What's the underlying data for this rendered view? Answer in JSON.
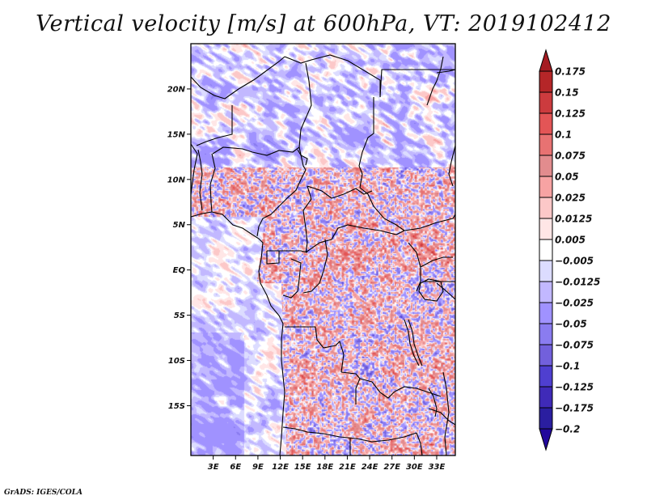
{
  "figure": {
    "title": "Vertical velocity [m/s] at 600hPa, VT: 2019102412",
    "credit": "GrADS: IGES/COLA"
  },
  "chart_data": {
    "type": "heatmap",
    "title": "Vertical velocity [m/s] at 600hPa, VT: 2019102412",
    "variable": "Vertical velocity",
    "units": "m/s",
    "level": "600hPa",
    "valid_time": "2019102412",
    "region": "Central Africa",
    "xlabel": "",
    "ylabel": "",
    "x_range_deg": [
      0,
      35.5
    ],
    "y_range_deg": [
      -20.5,
      25
    ],
    "x_ticks": [
      {
        "value": 3,
        "label": "3E"
      },
      {
        "value": 6,
        "label": "6E"
      },
      {
        "value": 9,
        "label": "9E"
      },
      {
        "value": 12,
        "label": "12E"
      },
      {
        "value": 15,
        "label": "15E"
      },
      {
        "value": 18,
        "label": "18E"
      },
      {
        "value": 21,
        "label": "21E"
      },
      {
        "value": 24,
        "label": "24E"
      },
      {
        "value": 27,
        "label": "27E"
      },
      {
        "value": 30,
        "label": "30E"
      },
      {
        "value": 33,
        "label": "33E"
      }
    ],
    "y_ticks": [
      {
        "value": 20,
        "label": "20N"
      },
      {
        "value": 15,
        "label": "15N"
      },
      {
        "value": 10,
        "label": "10N"
      },
      {
        "value": 5,
        "label": "5N"
      },
      {
        "value": 0,
        "label": "EQ"
      },
      {
        "value": -5,
        "label": "5S"
      },
      {
        "value": -10,
        "label": "10S"
      },
      {
        "value": -15,
        "label": "15S"
      }
    ],
    "colorbar": {
      "orientation": "vertical",
      "placement": "right",
      "extend": "both",
      "levels": [
        0.175,
        0.15,
        0.125,
        0.1,
        0.075,
        0.05,
        0.025,
        0.0125,
        0.005,
        -0.005,
        -0.0125,
        -0.025,
        -0.05,
        -0.075,
        -0.1,
        -0.125,
        -0.175,
        -0.2
      ],
      "labels": [
        "0.175",
        "0.15",
        "0.125",
        "0.1",
        "0.075",
        "0.05",
        "0.025",
        "0.0125",
        "0.005",
        "−0.005",
        "−0.0125",
        "−0.025",
        "−0.05",
        "−0.075",
        "−0.1",
        "−0.125",
        "−0.175",
        "−0.2"
      ],
      "colors_top_to_bottom": [
        "#a51c22",
        "#b52628",
        "#cc3b3e",
        "#e35556",
        "#e87272",
        "#e28c8e",
        "#f7a3a3",
        "#fcc8c8",
        "#ffe6e6",
        "#ffffff",
        "#dcdcff",
        "#c2b8ff",
        "#a092ff",
        "#8a7cf0",
        "#7260dc",
        "#4f3fd0",
        "#3f2ab8",
        "#2a1ea0",
        "#22089c"
      ]
    }
  }
}
